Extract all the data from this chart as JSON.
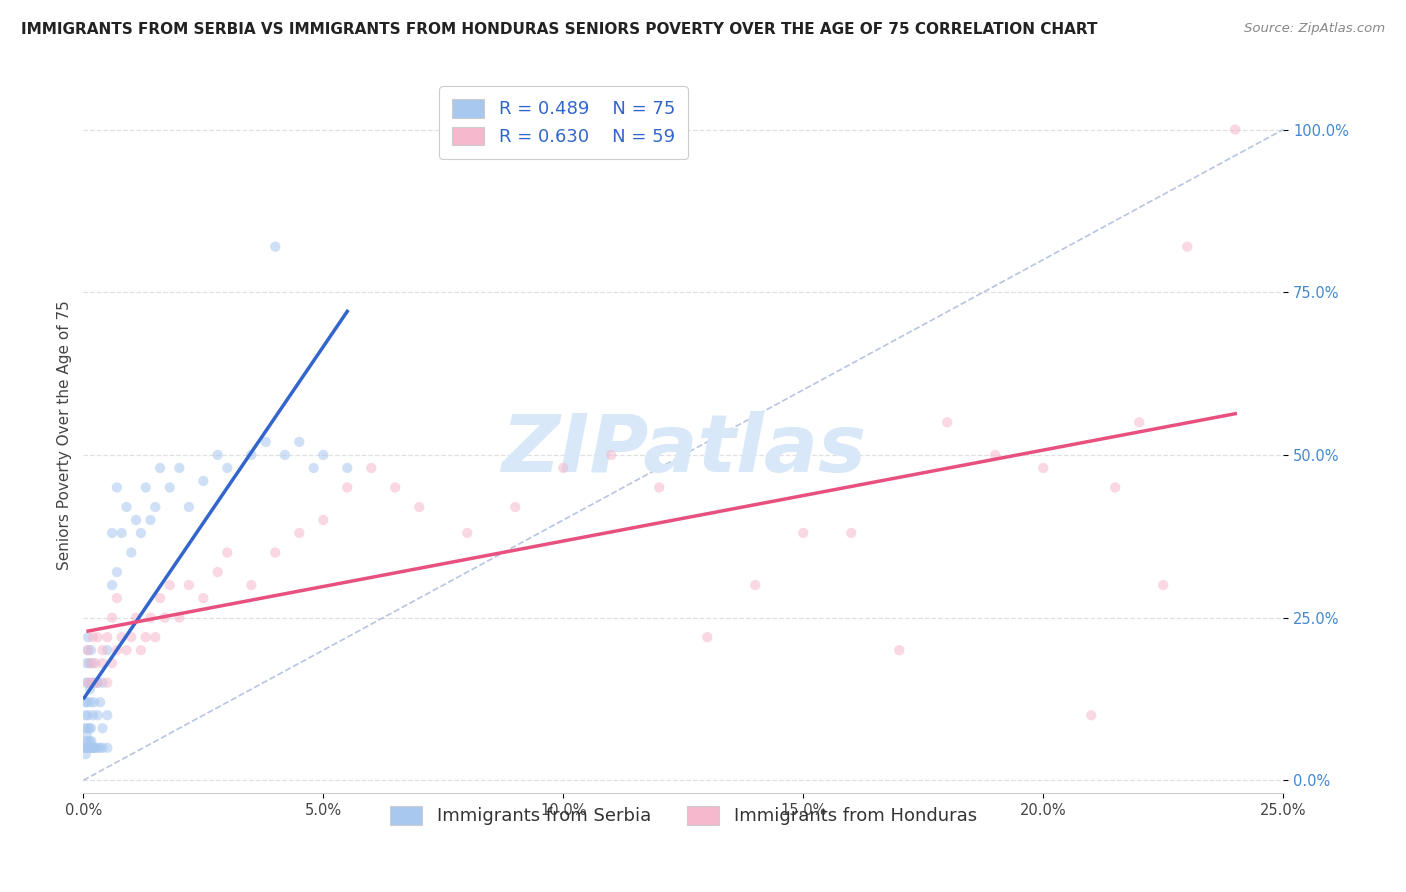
{
  "title": "IMMIGRANTS FROM SERBIA VS IMMIGRANTS FROM HONDURAS SENIORS POVERTY OVER THE AGE OF 75 CORRELATION CHART",
  "source": "Source: ZipAtlas.com",
  "ylabel": "Seniors Poverty Over the Age of 75",
  "xlabel_ticks": [
    "0.0%",
    "5.0%",
    "10.0%",
    "15.0%",
    "20.0%",
    "25.0%"
  ],
  "ylabel_ticks": [
    "0.0%",
    "25.0%",
    "50.0%",
    "75.0%",
    "100.0%"
  ],
  "xlim": [
    0,
    0.25
  ],
  "ylim": [
    -0.02,
    1.08
  ],
  "serbia_color": "#a8c8f0",
  "honduras_color": "#f5b8cc",
  "serbia_line_color": "#3366cc",
  "honduras_line_color": "#e85080",
  "diagonal_color": "#aabbdd",
  "serbia_R": 0.489,
  "serbia_N": 75,
  "honduras_R": 0.63,
  "honduras_N": 59,
  "legend_R_color": "#3366cc",
  "serbia_scatter_x": [
    0.0002,
    0.0003,
    0.0004,
    0.0004,
    0.0005,
    0.0005,
    0.0006,
    0.0006,
    0.0007,
    0.0007,
    0.0008,
    0.0008,
    0.0009,
    0.0009,
    0.001,
    0.001,
    0.001,
    0.0012,
    0.0012,
    0.0013,
    0.0013,
    0.0014,
    0.0014,
    0.0015,
    0.0015,
    0.0016,
    0.0016,
    0.0017,
    0.0018,
    0.0018,
    0.002,
    0.002,
    0.002,
    0.0022,
    0.0022,
    0.0025,
    0.0025,
    0.003,
    0.003,
    0.003,
    0.0035,
    0.0035,
    0.004,
    0.004,
    0.004,
    0.005,
    0.005,
    0.005,
    0.006,
    0.006,
    0.007,
    0.007,
    0.008,
    0.009,
    0.01,
    0.011,
    0.012,
    0.013,
    0.014,
    0.015,
    0.016,
    0.018,
    0.02,
    0.022,
    0.025,
    0.028,
    0.03,
    0.035,
    0.038,
    0.04,
    0.042,
    0.045,
    0.048,
    0.05,
    0.055
  ],
  "serbia_scatter_y": [
    0.05,
    0.08,
    0.06,
    0.12,
    0.04,
    0.1,
    0.05,
    0.15,
    0.07,
    0.18,
    0.05,
    0.12,
    0.08,
    0.2,
    0.06,
    0.1,
    0.22,
    0.05,
    0.15,
    0.08,
    0.18,
    0.06,
    0.14,
    0.05,
    0.12,
    0.08,
    0.2,
    0.06,
    0.05,
    0.15,
    0.05,
    0.1,
    0.18,
    0.05,
    0.12,
    0.05,
    0.15,
    0.05,
    0.1,
    0.15,
    0.05,
    0.12,
    0.05,
    0.08,
    0.15,
    0.05,
    0.1,
    0.2,
    0.3,
    0.38,
    0.32,
    0.45,
    0.38,
    0.42,
    0.35,
    0.4,
    0.38,
    0.45,
    0.4,
    0.42,
    0.48,
    0.45,
    0.48,
    0.42,
    0.46,
    0.5,
    0.48,
    0.5,
    0.52,
    0.82,
    0.5,
    0.52,
    0.48,
    0.5,
    0.48
  ],
  "honduras_scatter_x": [
    0.001,
    0.001,
    0.0015,
    0.002,
    0.002,
    0.0025,
    0.003,
    0.003,
    0.004,
    0.004,
    0.005,
    0.005,
    0.006,
    0.006,
    0.007,
    0.007,
    0.008,
    0.009,
    0.01,
    0.011,
    0.012,
    0.013,
    0.014,
    0.015,
    0.016,
    0.017,
    0.018,
    0.02,
    0.022,
    0.025,
    0.028,
    0.03,
    0.035,
    0.04,
    0.045,
    0.05,
    0.055,
    0.06,
    0.065,
    0.07,
    0.08,
    0.09,
    0.1,
    0.11,
    0.12,
    0.13,
    0.14,
    0.15,
    0.16,
    0.17,
    0.18,
    0.19,
    0.2,
    0.21,
    0.215,
    0.22,
    0.225,
    0.23,
    0.24
  ],
  "honduras_scatter_y": [
    0.15,
    0.2,
    0.18,
    0.15,
    0.22,
    0.18,
    0.15,
    0.22,
    0.18,
    0.2,
    0.15,
    0.22,
    0.18,
    0.25,
    0.2,
    0.28,
    0.22,
    0.2,
    0.22,
    0.25,
    0.2,
    0.22,
    0.25,
    0.22,
    0.28,
    0.25,
    0.3,
    0.25,
    0.3,
    0.28,
    0.32,
    0.35,
    0.3,
    0.35,
    0.38,
    0.4,
    0.45,
    0.48,
    0.45,
    0.42,
    0.38,
    0.42,
    0.48,
    0.5,
    0.45,
    0.22,
    0.3,
    0.38,
    0.38,
    0.2,
    0.55,
    0.5,
    0.48,
    0.1,
    0.45,
    0.55,
    0.3,
    0.82,
    1.0
  ],
  "background_color": "#ffffff",
  "grid_color": "#dddddd",
  "watermark_text": "ZIPatlas",
  "watermark_color": "#d8e8f8",
  "watermark_fontsize": 58,
  "title_fontsize": 11.0,
  "axis_label_fontsize": 11,
  "legend_fontsize": 13,
  "tick_fontsize": 10.5,
  "scatter_size": 55,
  "scatter_alpha": 0.55,
  "legend_label_serbia": "Immigrants from Serbia",
  "legend_label_honduras": "Immigrants from Honduras"
}
